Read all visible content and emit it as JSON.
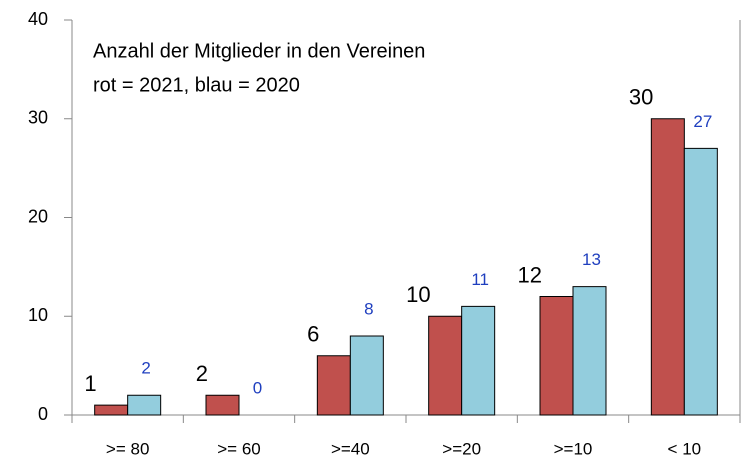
{
  "chart_data": {
    "type": "bar",
    "title": "Anzahl der Mitglieder in den Vereinen",
    "subtitle": "rot = 2021, blau = 2020",
    "categories": [
      ">= 80",
      ">= 60",
      ">=40",
      ">=20",
      ">=10",
      "< 10"
    ],
    "series": [
      {
        "color": "#c0504d",
        "label_color": "#000000",
        "values": [
          1,
          2,
          6,
          10,
          12,
          30
        ]
      },
      {
        "color": "#93cddd",
        "label_color": "#1f3fbf",
        "values": [
          2,
          0,
          8,
          11,
          13,
          27
        ]
      }
    ],
    "ylim": [
      0,
      40
    ],
    "yticks": [
      0,
      10,
      20,
      30,
      40
    ],
    "grid": false
  }
}
